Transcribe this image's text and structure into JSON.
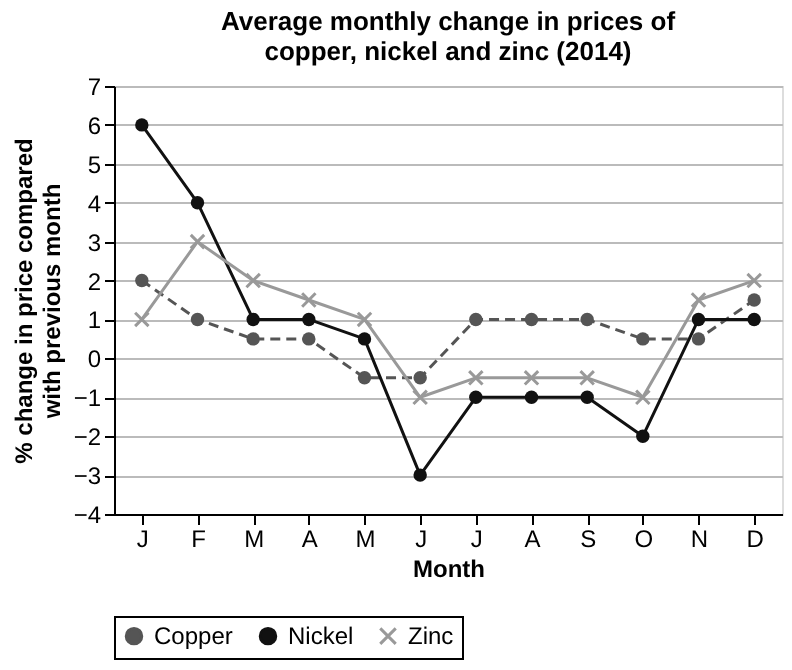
{
  "chart_data": {
    "type": "line",
    "title": "Average monthly change in prices of\ncopper, nickel and zinc (2014)",
    "xlabel": "Month",
    "ylabel": "% change in price compared\nwith previous month",
    "categories": [
      "J",
      "F",
      "M",
      "A",
      "M",
      "J",
      "J",
      "A",
      "S",
      "O",
      "N",
      "D"
    ],
    "series": [
      {
        "name": "Copper",
        "color": "#555555",
        "marker": "circle",
        "line_style": "dashed",
        "values": [
          2,
          1,
          0.5,
          0.5,
          -0.5,
          -0.5,
          1,
          1,
          1,
          0.5,
          0.5,
          1.5
        ]
      },
      {
        "name": "Nickel",
        "color": "#111111",
        "marker": "circle",
        "line_style": "solid",
        "values": [
          6,
          4,
          1,
          1,
          0.5,
          -3,
          -1,
          -1,
          -1,
          -2,
          1,
          1
        ]
      },
      {
        "name": "Zinc",
        "color": "#999999",
        "marker": "cross",
        "line_style": "solid",
        "values": [
          1,
          3,
          2,
          1.5,
          1,
          -1,
          -0.5,
          -0.5,
          -0.5,
          -1,
          1.5,
          2
        ]
      }
    ],
    "ylim": [
      -4,
      7
    ],
    "yticks": [
      -4,
      -3,
      -2,
      -1,
      0,
      1,
      2,
      3,
      4,
      5,
      6,
      7
    ],
    "grid": "y",
    "legend": "bottom"
  }
}
